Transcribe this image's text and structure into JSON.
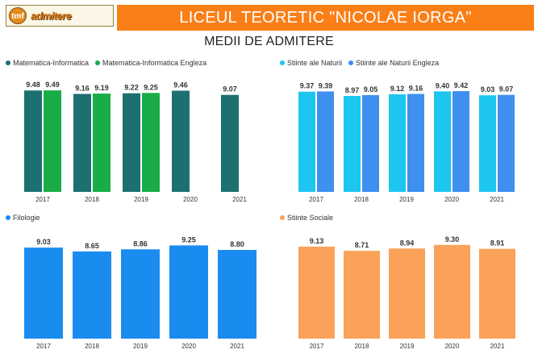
{
  "header": {
    "logo_text": "admitere",
    "logo_badge": "tmf",
    "title": "LICEUL TEORETIC \"NICOLAE IORGA\"",
    "subtitle": "MEDII DE ADMITERE"
  },
  "colors": {
    "banner": "#fa7f17",
    "mate_info": "#1c7070",
    "mate_info_en": "#19ac47",
    "stiinte_naturii": "#1dc6ee",
    "stiinte_naturii_en": "#3e8ff0",
    "filologie": "#1a8cf0",
    "stiinte_sociale": "#faa25a"
  },
  "chart_data": [
    {
      "type": "bar",
      "categories": [
        "2017",
        "2018",
        "2019",
        "2020",
        "2021"
      ],
      "series": [
        {
          "name": "Matematica-Informatica",
          "color": "#1c7070",
          "values": [
            9.48,
            9.16,
            9.22,
            9.46,
            9.07
          ]
        },
        {
          "name": "Matematica-Informatica Engleza",
          "color": "#19ac47",
          "values": [
            9.49,
            9.19,
            9.25,
            null,
            null
          ]
        }
      ],
      "ylim": [
        0,
        9.8
      ],
      "legend": "top-left",
      "grid": false
    },
    {
      "type": "bar",
      "categories": [
        "2017",
        "2018",
        "2019",
        "2020",
        "2021"
      ],
      "series": [
        {
          "name": "Stiinte ale Naturii",
          "color": "#1dc6ee",
          "values": [
            9.37,
            8.97,
            9.12,
            9.4,
            9.03
          ]
        },
        {
          "name": "Stiinte ale Naturii Engleza",
          "color": "#3e8ff0",
          "values": [
            9.39,
            9.05,
            9.16,
            9.42,
            9.07
          ]
        }
      ],
      "ylim": [
        0,
        9.8
      ],
      "legend": "top-left",
      "grid": false
    },
    {
      "type": "bar",
      "categories": [
        "2017",
        "2018",
        "2019",
        "2020",
        "2021"
      ],
      "series": [
        {
          "name": "Filologie",
          "color": "#1a8cf0",
          "values": [
            9.03,
            8.65,
            8.86,
            9.25,
            8.8
          ]
        }
      ],
      "ylim": [
        0,
        9.6
      ],
      "legend": "top-left",
      "grid": false
    },
    {
      "type": "bar",
      "categories": [
        "2017",
        "2018",
        "2019",
        "2020",
        "2021"
      ],
      "series": [
        {
          "name": "Stiinte Sociale",
          "color": "#faa25a",
          "values": [
            9.13,
            8.71,
            8.94,
            9.3,
            8.91
          ]
        }
      ],
      "ylim": [
        0,
        9.6
      ],
      "legend": "top-left",
      "grid": false
    }
  ]
}
